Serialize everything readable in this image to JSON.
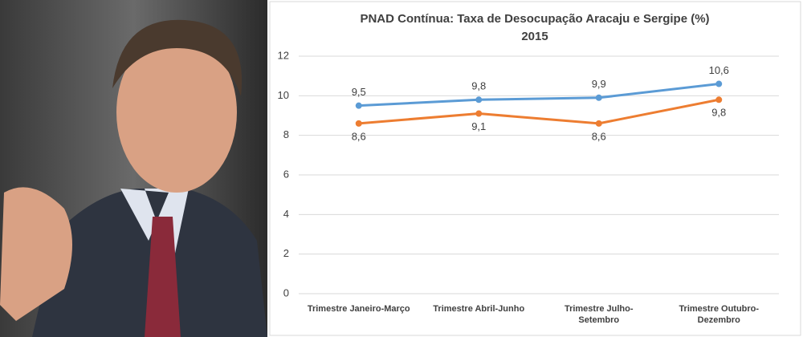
{
  "chart_data": {
    "type": "line",
    "title": "PNAD Contínua: Taxa de Desocupação Aracaju e Sergipe (%)",
    "subtitle": "2015",
    "categories": [
      "Trimestre Janeiro-Março",
      "Trimestre Abril-Junho",
      "Trimestre Julho-Setembro",
      "Trimestre Outubro-Dezembro"
    ],
    "series": [
      {
        "color": "#5b9bd5",
        "values": [
          9.5,
          9.8,
          9.9,
          10.6
        ],
        "value_labels": [
          "9,5",
          "9,8",
          "9,9",
          "10,6"
        ]
      },
      {
        "color": "#ed7d31",
        "values": [
          8.6,
          9.1,
          8.6,
          9.8
        ],
        "value_labels": [
          "8,6",
          "9,1",
          "8,6",
          "9,8"
        ]
      }
    ],
    "ylim": [
      0,
      12
    ],
    "yticks": [
      0,
      2,
      4,
      6,
      8,
      10,
      12
    ],
    "grid": true
  }
}
